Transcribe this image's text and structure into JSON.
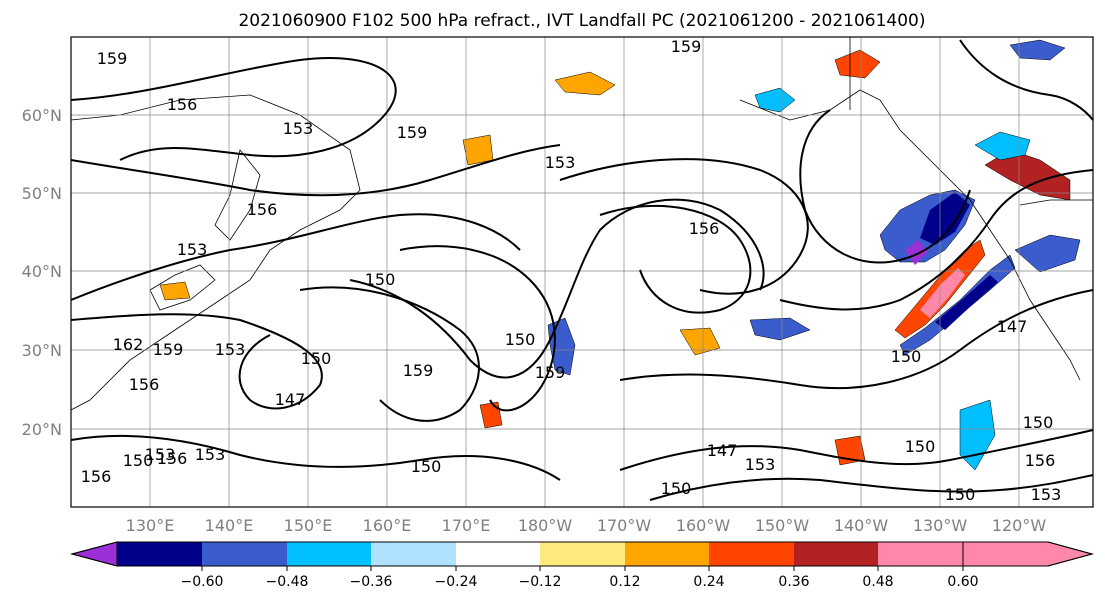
{
  "title": "2021060900 F102 500 hPa refract., IVT Landfall PC (2021061200 - 2021061400)",
  "map": {
    "lon_labels": [
      "130°E",
      "140°E",
      "150°E",
      "160°E",
      "170°E",
      "180°W",
      "170°W",
      "160°W",
      "150°W",
      "140°W",
      "130°W",
      "120°W"
    ],
    "lat_labels": [
      "60°N",
      "50°N",
      "40°N",
      "30°N",
      "20°N"
    ],
    "contour_labels": [
      "159",
      "156",
      "153",
      "156",
      "153",
      "150",
      "159",
      "162",
      "156",
      "153",
      "150",
      "147",
      "159",
      "153",
      "156",
      "150",
      "159",
      "159",
      "153",
      "156",
      "150",
      "147",
      "150",
      "153",
      "150",
      "153",
      "150",
      "150",
      "156",
      "147",
      "150",
      "150",
      "153",
      "156",
      "159"
    ]
  },
  "colorbar": {
    "colors": [
      "#9b30d9",
      "#00008b",
      "#3a5ccc",
      "#00bfff",
      "#b0e2ff",
      "#ffffff",
      "#ffe87c",
      "#ffa500",
      "#ff4500",
      "#b22222",
      "#ff88aa"
    ],
    "tick_labels": [
      "−0.60",
      "−0.48",
      "−0.36",
      "−0.24",
      "−0.12",
      "0.12",
      "0.24",
      "0.36",
      "0.48",
      "0.60"
    ]
  }
}
